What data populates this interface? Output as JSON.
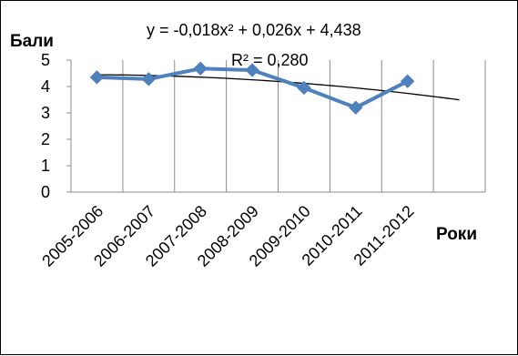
{
  "chart_data": {
    "type": "line",
    "title": "",
    "ylabel": "Бали",
    "xlabel": "Роки",
    "ylim": [
      0,
      5
    ],
    "yticks": [
      "0",
      "1",
      "2",
      "3",
      "4",
      "5"
    ],
    "grid": "vertical",
    "legend": "none",
    "categories": [
      "2005-2006",
      "2006-2007",
      "2007-2008",
      "2008-2009",
      "2009-2010",
      "2010-2011",
      "2011-2012"
    ],
    "series": [
      {
        "values": [
          4.35,
          4.28,
          4.68,
          4.62,
          3.95,
          3.2,
          4.2
        ],
        "color": "#4F81BD",
        "marker": "diamond"
      }
    ],
    "trendline": {
      "type": "polynomial",
      "order": 2,
      "coefficients": [
        -0.018,
        0.026,
        4.438
      ],
      "color": "#000000",
      "equation_label": "y = -0,018x² + 0,026x + 4,438",
      "r2_label": "R² = 0,280"
    }
  }
}
